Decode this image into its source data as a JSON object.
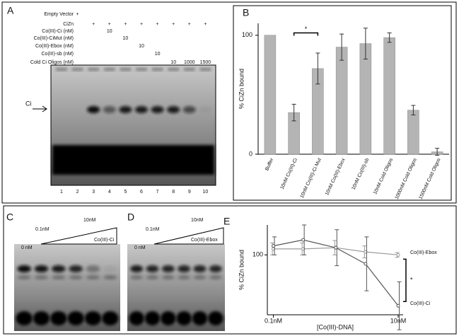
{
  "panel_labels": [
    "A",
    "B",
    "C",
    "D",
    "E"
  ],
  "gel_a": {
    "rows": [
      {
        "label": "Empty Vector",
        "cells": [
          null,
          "+",
          null,
          null,
          null,
          null,
          null,
          null,
          null,
          null
        ]
      },
      {
        "label": "CiZn",
        "cells": [
          null,
          null,
          "+",
          "+",
          "+",
          "+",
          "+",
          "+",
          "+",
          "+"
        ]
      },
      {
        "label": "Co(III)-Ci (nM)",
        "cells": [
          null,
          null,
          null,
          "10",
          null,
          null,
          null,
          null,
          null,
          null
        ]
      },
      {
        "label": "Co(III)-CiMut (nM)",
        "cells": [
          null,
          null,
          null,
          null,
          "10",
          null,
          null,
          null,
          null,
          null
        ]
      },
      {
        "label": "Co(III)-Ebox (nM)",
        "cells": [
          null,
          null,
          null,
          null,
          null,
          "10",
          null,
          null,
          null,
          null
        ]
      },
      {
        "label": "Co(III)-sb (nM)",
        "cells": [
          null,
          null,
          null,
          null,
          null,
          null,
          "10",
          null,
          null,
          null
        ]
      },
      {
        "label": "Cold Ci Oligos (nM)",
        "cells": [
          null,
          null,
          null,
          null,
          null,
          null,
          null,
          "10",
          "1000",
          "1500"
        ]
      }
    ],
    "lanes": [
      "1",
      "2",
      "3",
      "4",
      "5",
      "6",
      "7",
      "8",
      "9",
      "10"
    ],
    "band_label": "Ci"
  },
  "gel_c": {
    "low": "0 nM",
    "mid": "0.1nM",
    "high": "10nM",
    "treatment": "Co(III)-Ci"
  },
  "gel_d": {
    "low": "0 nM",
    "mid": "0.1nM",
    "high": "10nM",
    "treatment": "Co(III)-Ebox"
  },
  "chart_data": [
    {
      "type": "bar",
      "ylabel": "% CiZn bound",
      "categories": [
        "Buffer",
        "10nM Co(III)-Ci",
        "10nM Co(III)-Ci Mut",
        "10nM Co(III)-Ebox",
        "10nM Co(III)-sb",
        "10nM Cold Oligos",
        "1000nM Cold Oligos",
        "1500nM Cold Oligos"
      ],
      "values": [
        100,
        35,
        72,
        90,
        93,
        98,
        37,
        2
      ],
      "errors": [
        0,
        7,
        13,
        11,
        13,
        4,
        4,
        3
      ],
      "color": "#b4b4b4",
      "ylim": [
        0,
        110
      ],
      "yticks": [
        0,
        100
      ],
      "annotation": "*"
    },
    {
      "type": "line",
      "ylabel": "% CiZn bound",
      "xlabel": "[Co(III)-DNA]",
      "xscale": "log",
      "x": [
        0.1,
        0.3,
        1,
        3,
        10
      ],
      "series": [
        {
          "name": "Co(III)-Ebox",
          "color": "#9a9a9a",
          "values": [
            110,
            110,
            112,
            105,
            100
          ],
          "errors": [
            10,
            10,
            12,
            10,
            4
          ]
        },
        {
          "name": "Co(III)-Ci",
          "color": "#555555",
          "values": [
            115,
            125,
            112,
            85,
            15
          ],
          "errors": [
            15,
            25,
            30,
            45,
            40
          ]
        }
      ],
      "xlim": [
        0.08,
        12
      ],
      "ylim": [
        0,
        150
      ],
      "xticks": [
        {
          "value": 0.1,
          "label": "0.1nM"
        },
        {
          "value": 10,
          "label": "10nM"
        }
      ],
      "yticks": [
        100
      ],
      "annotation": "*"
    }
  ]
}
